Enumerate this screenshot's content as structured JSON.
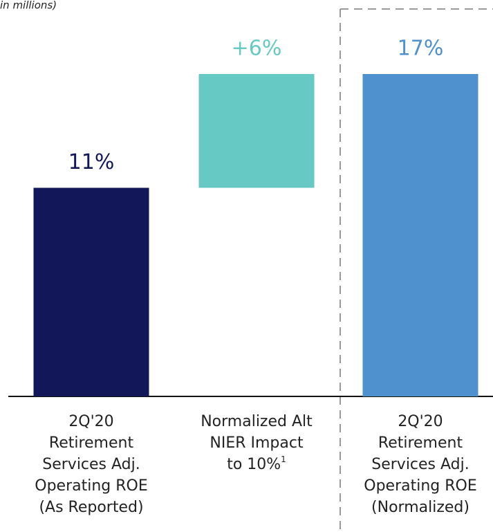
{
  "chart_data": {
    "type": "waterfall",
    "note": "in millions)",
    "categories": [
      [
        "2Q'20",
        "Retirement",
        "Services Adj.",
        "Operating ROE",
        "(As Reported)"
      ],
      [
        "Normalized Alt",
        "NIER Impact",
        "to 10%"
      ],
      [
        "2Q'20",
        "Retirement",
        "Services Adj.",
        "Operating ROE",
        "(Normalized)"
      ]
    ],
    "category_footnotes": [
      null,
      "1",
      null
    ],
    "values": [
      11,
      6,
      17
    ],
    "value_labels": [
      "11%",
      "+6%",
      "17%"
    ],
    "is_total": [
      false,
      false,
      true
    ],
    "colors": [
      "#12175a",
      "#66c9c4",
      "#4f90ce"
    ]
  }
}
